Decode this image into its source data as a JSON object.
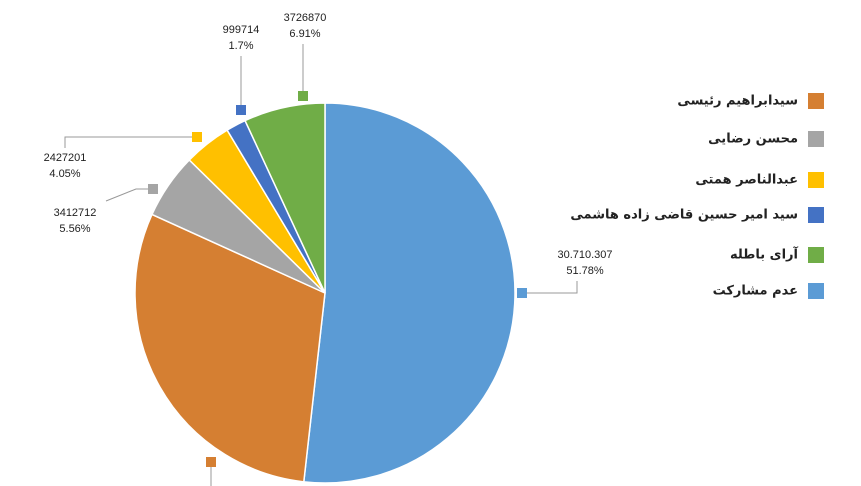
{
  "chart_data": {
    "type": "pie",
    "categories": [
      "سیدابراهیم رئیسی",
      "محسن رضایی",
      "عبدالناصر همتی",
      "سید امیر حسین قاضی زاده هاشمی",
      "آرای باطله",
      "عدم مشارکت"
    ],
    "values": [
      30.0,
      5.56,
      4.05,
      1.7,
      6.91,
      51.78
    ],
    "value_labels": [
      null,
      "5.56%",
      "4.05%",
      "1.7%",
      "6.91%",
      "51.78%"
    ],
    "counts": [
      null,
      "3412712",
      "2427201",
      "999714",
      "3726870",
      "30.710.307"
    ],
    "colors": [
      "#D57F32",
      "#A5A5A5",
      "#FFC000",
      "#4472C4",
      "#70AD47",
      "#5B9BD5"
    ],
    "legend": "right"
  }
}
